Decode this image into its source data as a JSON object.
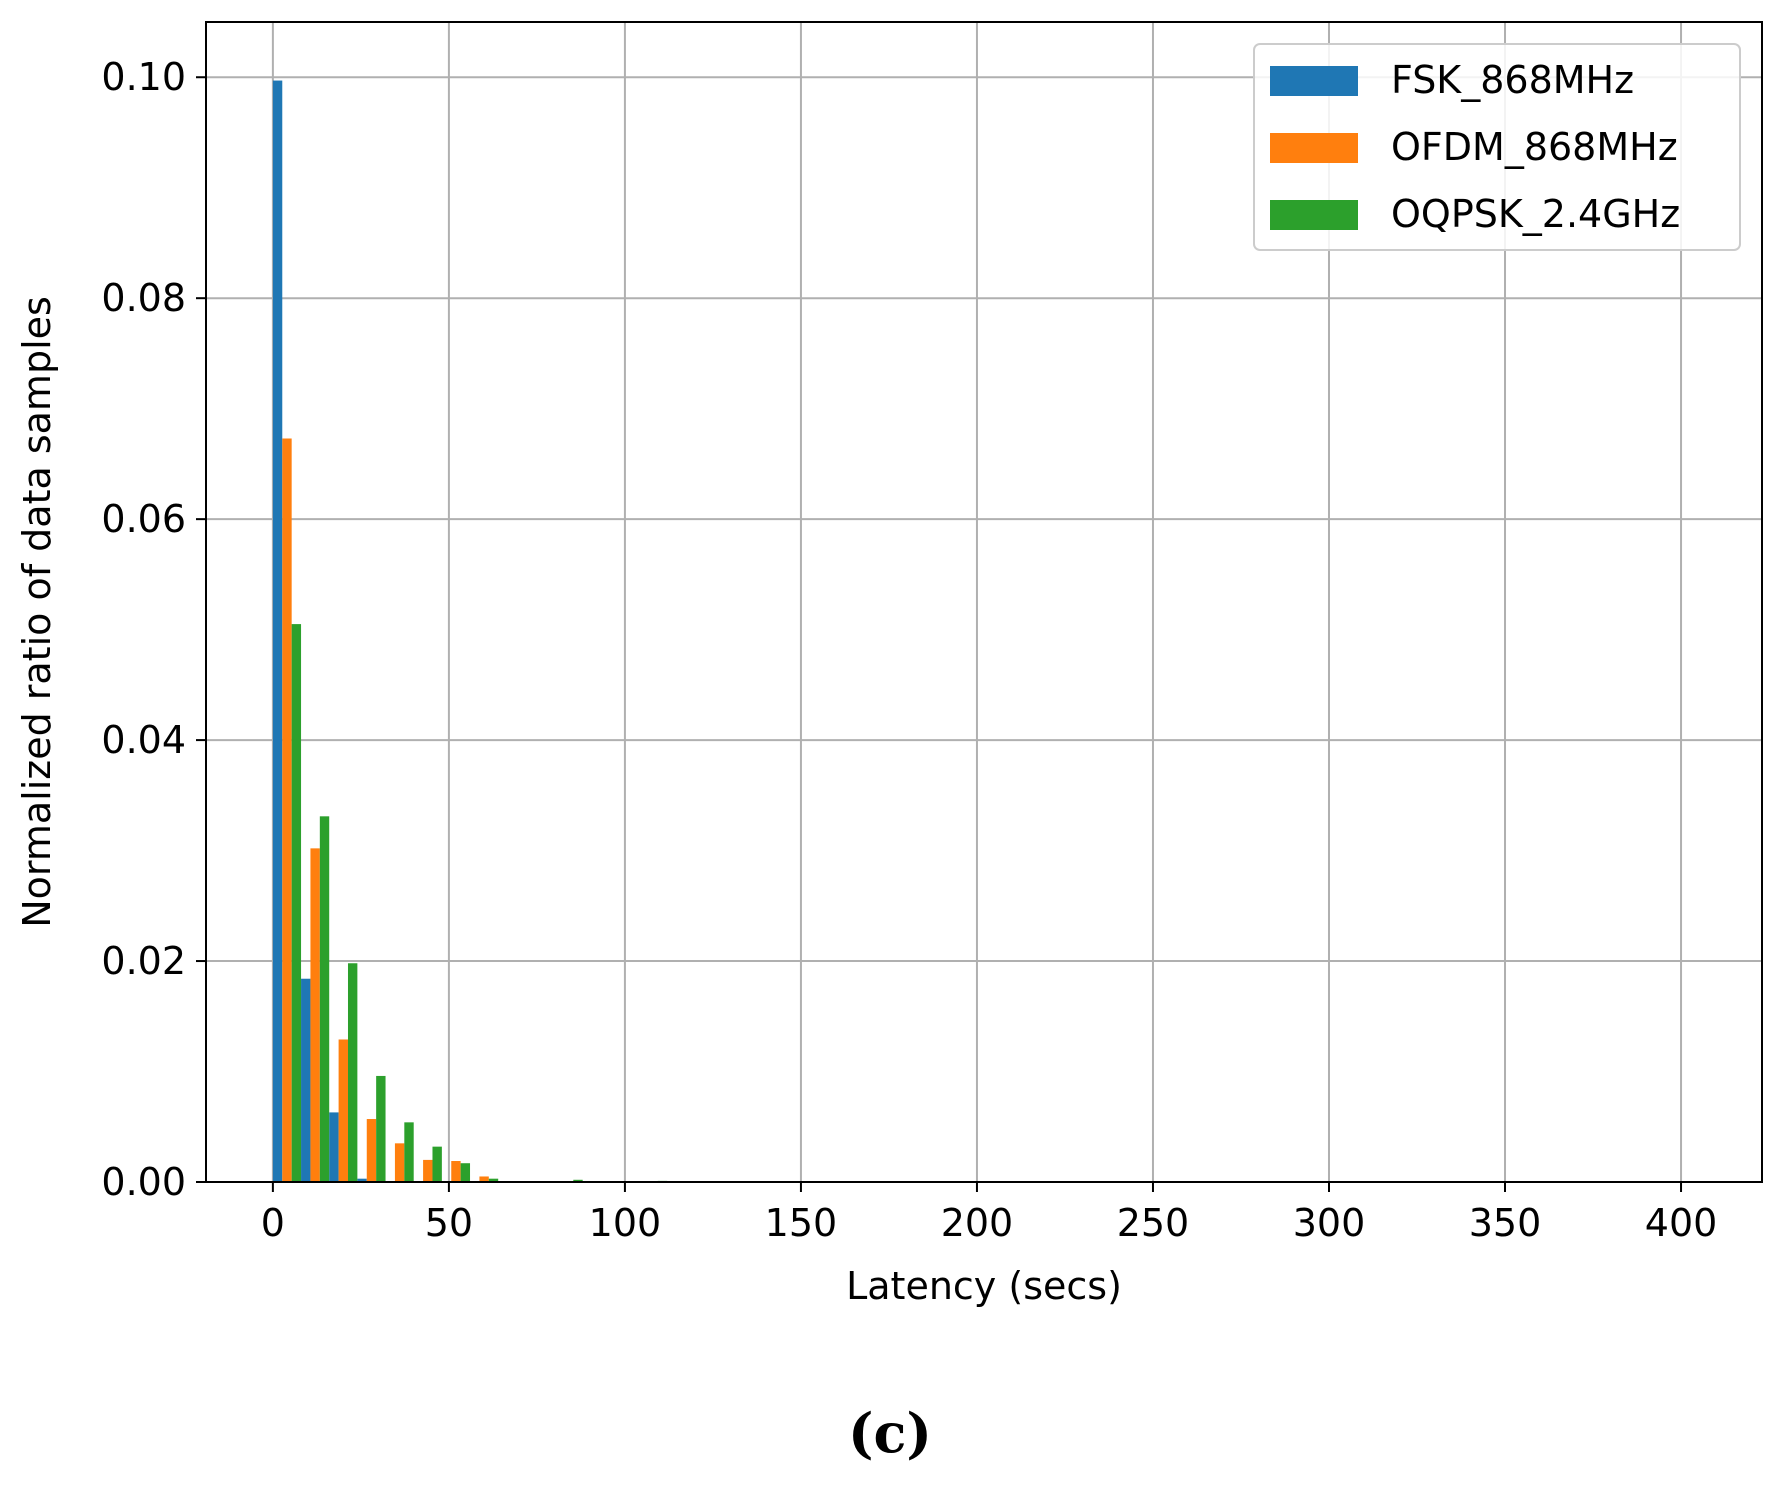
{
  "caption": "(c)",
  "chart_data": {
    "type": "bar",
    "title": "",
    "xlabel": "Latency (secs)",
    "ylabel": "Normalized ratio of data samples",
    "xlim": [
      -19,
      423
    ],
    "ylim": [
      0,
      0.105
    ],
    "xticks": [
      0,
      50,
      100,
      150,
      200,
      250,
      300,
      350,
      400
    ],
    "yticks": [
      0.0,
      0.02,
      0.04,
      0.06,
      0.08,
      0.1
    ],
    "ytick_labels": [
      "0.00",
      "0.02",
      "0.04",
      "0.06",
      "0.08",
      "0.10"
    ],
    "grid": true,
    "legend_position": "upper right",
    "bin_width": 8,
    "bin_starts": [
      0,
      8,
      16,
      24,
      32,
      40,
      48,
      56,
      64,
      72,
      80,
      88,
      96,
      104,
      112
    ],
    "series": [
      {
        "name": "FSK_868MHz",
        "color": "#1f77b4",
        "values": [
          0.0997,
          0.0184,
          0.0063,
          0.0003,
          0,
          0,
          0,
          0,
          0,
          0,
          0,
          0,
          0,
          0,
          0
        ]
      },
      {
        "name": "OFDM_868MHz",
        "color": "#ff7f0e",
        "values": [
          0.0673,
          0.0302,
          0.0129,
          0.0057,
          0.0035,
          0.002,
          0.0019,
          0.0005,
          0,
          0,
          0,
          0,
          0,
          0,
          0
        ]
      },
      {
        "name": "OQPSK_2.4GHz",
        "color": "#2ca02c",
        "values": [
          0.0505,
          0.0331,
          0.0198,
          0.0096,
          0.0054,
          0.0032,
          0.0017,
          0.0003,
          0,
          0,
          0.0002,
          0,
          0,
          0.0001,
          0
        ]
      }
    ]
  }
}
